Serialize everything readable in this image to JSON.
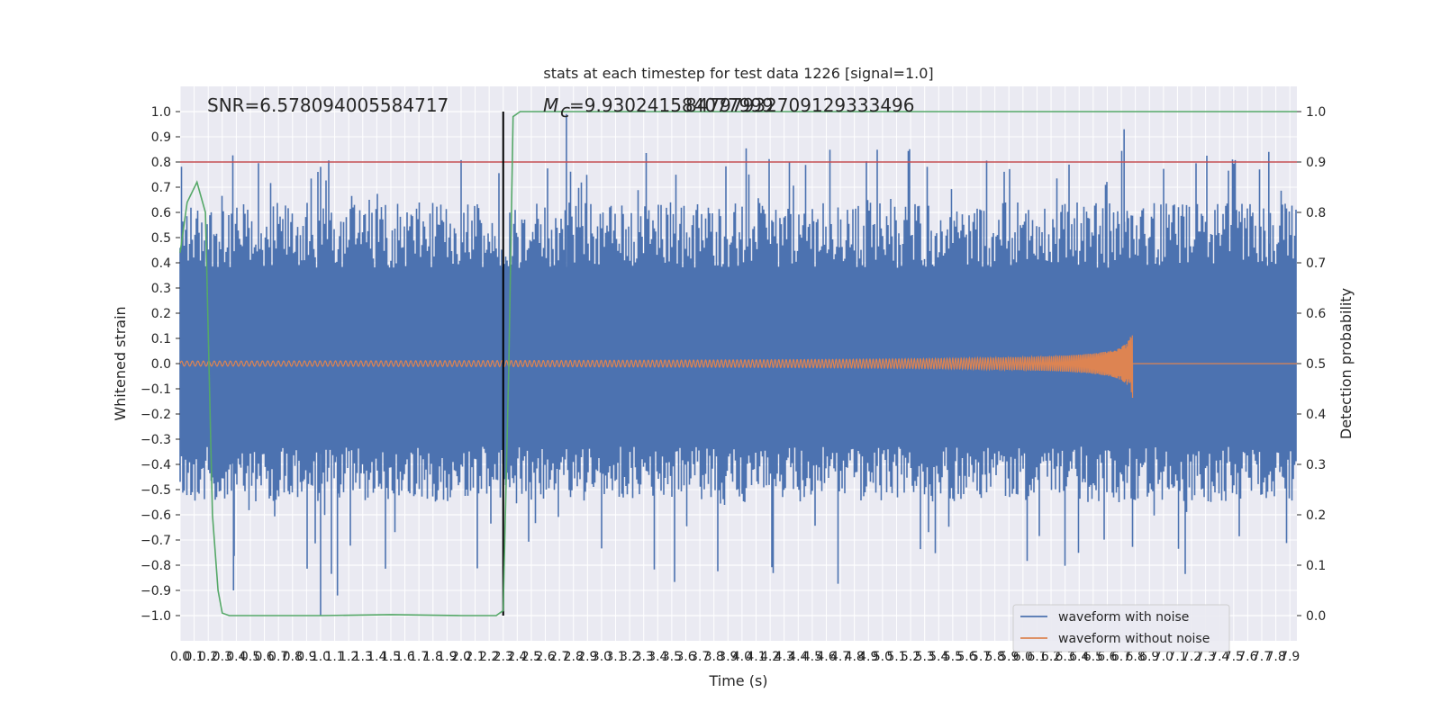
{
  "chart_data": {
    "type": "line",
    "title": "stats at each timestep for test data 1226 [signal=1.0]",
    "xlabel": "Time (s)",
    "ylabel": "Whitened strain",
    "y2label": "Detection probability",
    "xlim": [
      0.0,
      7.95
    ],
    "ylim": [
      -1.1,
      1.1
    ],
    "y2lim": [
      -0.05,
      1.05
    ],
    "grid": true,
    "legend_position": "bottom-right",
    "x_ticks": [
      "0.0",
      "0.1",
      "0.2",
      "0.3",
      "0.4",
      "0.5",
      "0.6",
      "0.7",
      "0.8",
      "0.9",
      "1.0",
      "1.1",
      "1.2",
      "1.3",
      "1.4",
      "1.5",
      "1.6",
      "1.7",
      "1.8",
      "1.9",
      "2.0",
      "2.1",
      "2.2",
      "2.3",
      "2.4",
      "2.5",
      "2.6",
      "2.7",
      "2.8",
      "2.9",
      "3.0",
      "3.1",
      "3.2",
      "3.3",
      "3.4",
      "3.5",
      "3.6",
      "3.7",
      "3.8",
      "3.9",
      "4.0",
      "4.1",
      "4.2",
      "4.3",
      "4.4",
      "4.5",
      "4.6",
      "4.7",
      "4.8",
      "4.9",
      "5.0",
      "5.1",
      "5.2",
      "5.3",
      "5.4",
      "5.5",
      "5.6",
      "5.7",
      "5.8",
      "5.9",
      "6.0",
      "6.1",
      "6.2",
      "6.3",
      "6.4",
      "6.5",
      "6.6",
      "6.7",
      "6.8",
      "6.9",
      "7.0",
      "7.1",
      "7.2",
      "7.3",
      "7.4",
      "7.5",
      "7.6",
      "7.7",
      "7.8",
      "7.9"
    ],
    "y_ticks": [
      "1.0",
      "0.9",
      "0.8",
      "0.7",
      "0.6",
      "0.5",
      "0.4",
      "0.3",
      "0.2",
      "0.1",
      "0.0",
      "−0.1",
      "−0.2",
      "−0.3",
      "−0.4",
      "−0.5",
      "−0.6",
      "−0.7",
      "−0.8",
      "−0.9",
      "−1.0"
    ],
    "y2_ticks": [
      "1.0",
      "0.9",
      "0.8",
      "0.7",
      "0.6",
      "0.5",
      "0.4",
      "0.3",
      "0.2",
      "0.1",
      "0.0"
    ],
    "annotations": {
      "snr": "SNR=6.578094005584717",
      "mc_symbol": "M",
      "mc_subscript": "c",
      "mc_value": "=9.930241584077999",
      "mc_overlap": "847979327091293334​96"
    },
    "threshold": {
      "value": 0.9,
      "axis": "right",
      "color": "#c44e52"
    },
    "event_marker": {
      "x": 2.3,
      "color": "#000000"
    },
    "series": [
      {
        "name": "waveform with noise",
        "color": "#4c72b0",
        "description_envelope": {
          "upper_typical": 0.5,
          "lower_typical": -0.45,
          "max": 0.99,
          "min": -1.0
        }
      },
      {
        "name": "waveform without noise",
        "color": "#dd8452",
        "chirp": {
          "start_amp": 0.01,
          "end_amp": 0.24,
          "end_time": 6.78
        }
      },
      {
        "name": "",
        "color": "#55a868",
        "axis": "right",
        "x": [
          0.0,
          0.05,
          0.12,
          0.18,
          0.23,
          0.27,
          0.3,
          0.35,
          0.5,
          1.0,
          1.5,
          2.0,
          2.1,
          2.2,
          2.25,
          2.3,
          2.34,
          2.37,
          2.42,
          2.5,
          3.0,
          4.0,
          5.0,
          6.0,
          7.0,
          7.95
        ],
        "y": [
          0.72,
          0.82,
          0.86,
          0.8,
          0.2,
          0.05,
          0.005,
          0.0,
          0.0,
          0.0,
          0.002,
          0.0,
          0.0,
          0.0,
          0.0,
          0.01,
          0.5,
          0.99,
          1.0,
          1.0,
          1.0,
          1.0,
          1.0,
          1.0,
          1.0,
          1.0
        ]
      }
    ]
  }
}
